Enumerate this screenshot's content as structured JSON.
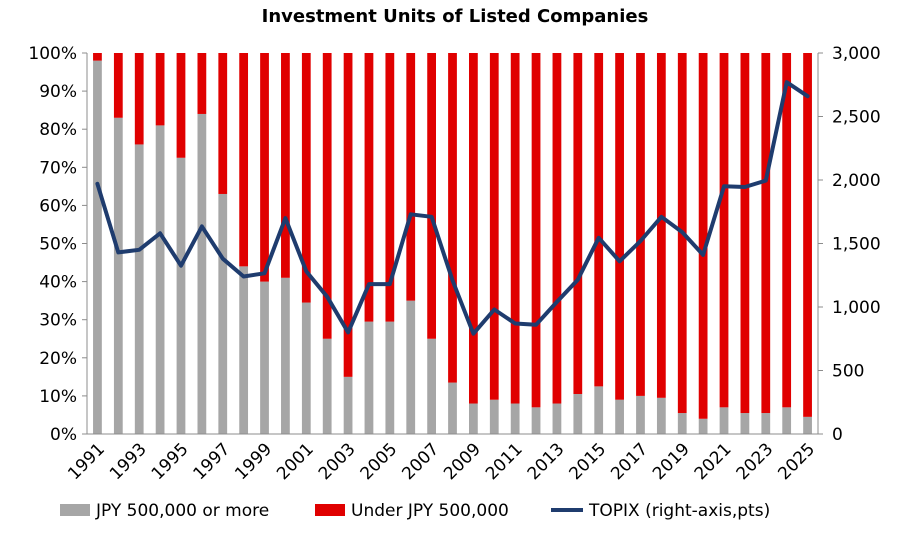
{
  "chart_data": {
    "type": "bar",
    "subtype": "stacked-100-percent-bar-with-line",
    "title": "Investment Units of Listed Companies",
    "x": [
      1991,
      1992,
      1993,
      1994,
      1995,
      1996,
      1997,
      1998,
      1999,
      2000,
      2001,
      2002,
      2003,
      2004,
      2005,
      2006,
      2007,
      2008,
      2009,
      2010,
      2011,
      2012,
      2013,
      2014,
      2015,
      2016,
      2017,
      2018,
      2019,
      2020,
      2021,
      2022,
      2023,
      2024,
      2025
    ],
    "x_tick_labels": [
      "1991",
      "1993",
      "1995",
      "1997",
      "1999",
      "2001",
      "2003",
      "2005",
      "2007",
      "2009",
      "2011",
      "2013",
      "2015",
      "2017",
      "2019",
      "2021",
      "2023",
      "2025"
    ],
    "series": [
      {
        "name": "JPY 500,000 or more",
        "kind": "bar",
        "color": "#a6a6a6",
        "values": [
          98,
          83,
          76,
          81,
          72.5,
          84,
          63,
          44,
          40,
          41,
          34.5,
          25,
          15,
          29.5,
          29.5,
          35,
          25,
          13.5,
          8,
          9,
          8,
          7,
          8,
          10.5,
          12.5,
          9,
          10,
          9.5,
          5.5,
          4,
          7,
          5.5,
          5.5,
          7,
          4.5
        ]
      },
      {
        "name": "Under JPY 500,000",
        "kind": "bar",
        "color": "#e00000",
        "values": [
          2,
          17,
          24,
          19,
          27.5,
          16,
          37,
          56,
          60,
          59,
          65.5,
          75,
          85,
          70.5,
          70.5,
          65,
          75,
          86.5,
          92,
          91,
          92,
          93,
          92,
          89.5,
          87.5,
          91,
          90,
          90.5,
          94.5,
          96,
          93,
          94.5,
          94.5,
          93,
          95.5
        ]
      },
      {
        "name": "TOPIX (right-axis,pts)",
        "kind": "line",
        "axis": "right",
        "color": "#1f3c6e",
        "values": [
          1970,
          1430,
          1450,
          1580,
          1325,
          1635,
          1380,
          1240,
          1265,
          1700,
          1280,
          1080,
          800,
          1180,
          1180,
          1730,
          1710,
          1210,
          790,
          980,
          870,
          860,
          1040,
          1215,
          1545,
          1360,
          1520,
          1710,
          1590,
          1410,
          1950,
          1945,
          1995,
          2770,
          2660
        ]
      }
    ],
    "left_axis": {
      "min": 0,
      "max": 100,
      "ticks": [
        "100%",
        "90%",
        "80%",
        "70%",
        "60%",
        "50%",
        "40%",
        "30%",
        "20%",
        "10%",
        "0%"
      ]
    },
    "right_axis": {
      "min": 0,
      "max": 3000,
      "ticks": [
        "3,000",
        "2,500",
        "2,000",
        "1,500",
        "1,000",
        "500",
        "0"
      ]
    },
    "legend_position": "bottom"
  }
}
